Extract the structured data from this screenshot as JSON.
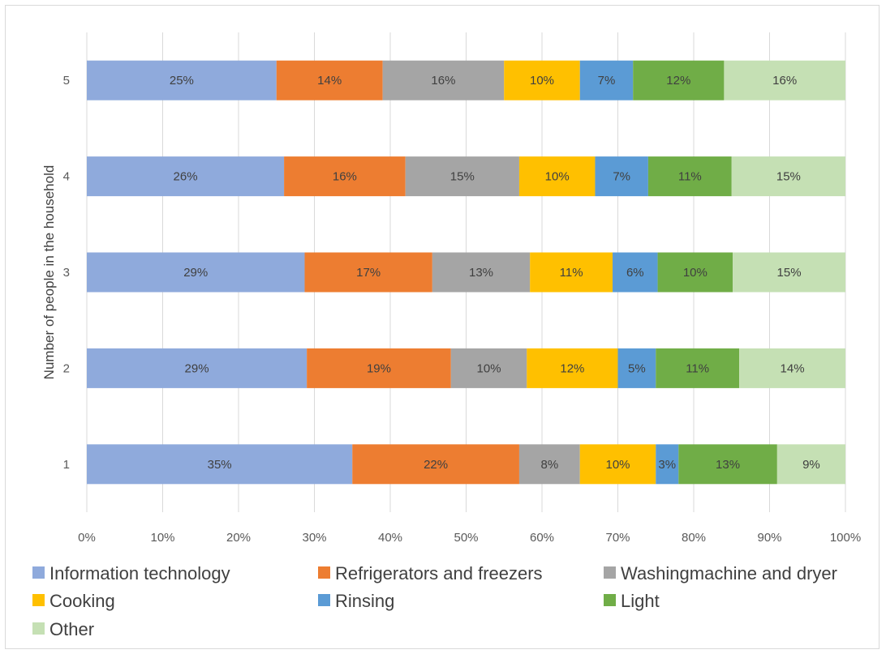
{
  "chart_data": {
    "type": "bar",
    "orientation": "horizontal",
    "stacked": "percent",
    "title": "",
    "ylabel": "Number of people in the household",
    "xlabel": "",
    "categories": [
      "1",
      "2",
      "3",
      "4",
      "5"
    ],
    "x_ticks": [
      "0%",
      "10%",
      "20%",
      "30%",
      "40%",
      "50%",
      "60%",
      "70%",
      "80%",
      "90%",
      "100%"
    ],
    "xlim": [
      0,
      100
    ],
    "grid": "vertical",
    "legend_position": "bottom",
    "series": [
      {
        "name": "Information technology",
        "color": "#8faadc",
        "values": [
          35,
          29,
          29,
          26,
          25
        ],
        "labels": [
          "35%",
          "29%",
          "29%",
          "26%",
          "25%"
        ]
      },
      {
        "name": "Refrigerators and freezers",
        "color": "#ed7d31",
        "values": [
          22,
          19,
          17,
          16,
          14
        ],
        "labels": [
          "22%",
          "19%",
          "17%",
          "16%",
          "14%"
        ]
      },
      {
        "name": "Washingmachine and dryer",
        "color": "#a5a5a5",
        "values": [
          8,
          10,
          13,
          15,
          16
        ],
        "labels": [
          "8%",
          "10%",
          "13%",
          "15%",
          "16%"
        ]
      },
      {
        "name": "Cooking",
        "color": "#ffc000",
        "values": [
          10,
          12,
          11,
          10,
          10
        ],
        "labels": [
          "10%",
          "12%",
          "11%",
          "10%",
          "10%"
        ]
      },
      {
        "name": "Rinsing",
        "color": "#5b9bd5",
        "values": [
          3,
          5,
          6,
          7,
          7
        ],
        "labels": [
          "3%",
          "5%",
          "6%",
          "7%",
          "7%"
        ]
      },
      {
        "name": "Light",
        "color": "#70ad47",
        "values": [
          13,
          11,
          10,
          11,
          12
        ],
        "labels": [
          "13%",
          "11%",
          "10%",
          "11%",
          "12%"
        ]
      },
      {
        "name": "Other",
        "color": "#c5e0b4",
        "values": [
          9,
          14,
          15,
          15,
          16
        ],
        "labels": [
          "9%",
          "14%",
          "15%",
          "15%",
          "16%"
        ]
      }
    ]
  }
}
